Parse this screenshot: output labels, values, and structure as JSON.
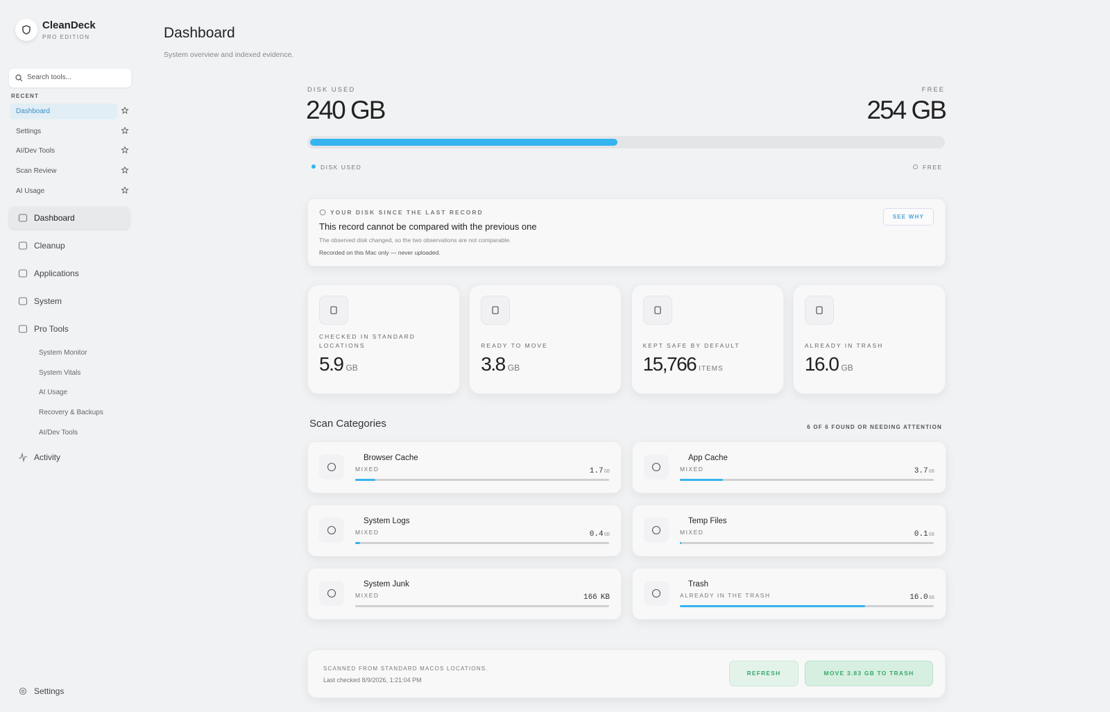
{
  "sidebar": {
    "app_name": "CleanDeck",
    "edition": "PRO EDITION",
    "search_placeholder": "Search tools...",
    "recent_heading": "RECENT",
    "recent": [
      "Dashboard",
      "Settings",
      "AI/Dev Tools",
      "Scan Review",
      "AI Usage"
    ],
    "nav": [
      "Dashboard",
      "Cleanup",
      "Applications",
      "System",
      "Pro Tools"
    ],
    "pro_tools": [
      "System Monitor",
      "System Vitals",
      "AI Usage",
      "Recovery & Backups",
      "AI/Dev Tools"
    ],
    "activity": "Activity",
    "settings": "Settings"
  },
  "header": {
    "title": "Dashboard",
    "subtitle": "System overview and indexed evidence."
  },
  "disk": {
    "used_label": "DISK USED",
    "used": 240,
    "used_unit": "GB",
    "free_label": "FREE",
    "free": 254,
    "free_unit": "GB",
    "legend": [
      "DISK USED",
      "FREE"
    ]
  },
  "record": {
    "heading": "YOUR DISK SINCE THE LAST RECORD",
    "title": "This record cannot be compared with the previous one",
    "description": "The observed disk changed, so the two observations are not comparable.",
    "note": "Recorded on this Mac only — never uploaded.",
    "button": "SEE WHY"
  },
  "stats": [
    {
      "label": "CHECKED IN STANDARD LOCATIONS",
      "value": "5.9",
      "unit": "GB"
    },
    {
      "label": "READY TO MOVE",
      "value": "3.8",
      "unit": "GB"
    },
    {
      "label": "KEPT SAFE BY DEFAULT",
      "value": "15,766",
      "unit": "ITEMS"
    },
    {
      "label": "ALREADY IN TRASH",
      "value": "16.0",
      "unit": "GB"
    }
  ],
  "categories": {
    "title": "Scan Categories",
    "summary": "6 OF 6 FOUND OR NEEDING ATTENTION",
    "items": [
      {
        "name": "Browser Cache",
        "status": "MIXED",
        "size": "1.7",
        "unit": "GB",
        "fill": 8
      },
      {
        "name": "App Cache",
        "status": "MIXED",
        "size": "3.7",
        "unit": "GB",
        "fill": 17
      },
      {
        "name": "System Logs",
        "status": "MIXED",
        "size": "0.4",
        "unit": "GB",
        "fill": 2
      },
      {
        "name": "Temp Files",
        "status": "MIXED",
        "size": "0.1",
        "unit": "GB",
        "fill": 0.5
      },
      {
        "name": "System Junk",
        "status": "MIXED",
        "size": "166",
        "unit": "KB",
        "fill": 0
      },
      {
        "name": "Trash",
        "status": "ALREADY IN THE TRASH",
        "size": "16.0",
        "unit": "GB",
        "fill": 73
      }
    ]
  },
  "footer": {
    "source": "SCANNED FROM STANDARD MACOS LOCATIONS.",
    "last_checked": "Last checked 8/9/2026, 1:21:04 PM",
    "refresh": "REFRESH",
    "move": "MOVE 3.83 GB TO TRASH"
  }
}
